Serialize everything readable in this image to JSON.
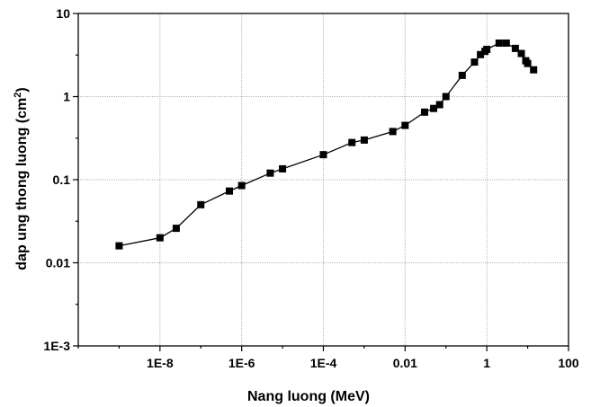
{
  "chart_data": {
    "type": "line",
    "xlabel": "Nang luong (MeV)",
    "ylabel_main": "dap ung thong luong (cm",
    "ylabel_sup": "2",
    "ylabel_close": ")",
    "x_scale": "log",
    "y_scale": "log",
    "xlim": [
      1e-10,
      100
    ],
    "ylim": [
      0.001,
      10
    ],
    "x_ticks": [
      {
        "value": 1e-08,
        "label": "1E-8"
      },
      {
        "value": 1e-06,
        "label": "1E-6"
      },
      {
        "value": 0.0001,
        "label": "1E-4"
      },
      {
        "value": 0.01,
        "label": "0.01"
      },
      {
        "value": 1,
        "label": "1"
      },
      {
        "value": 100,
        "label": "100"
      }
    ],
    "y_ticks": [
      {
        "value": 0.001,
        "label": "1E-3"
      },
      {
        "value": 0.01,
        "label": "0.01"
      },
      {
        "value": 0.1,
        "label": "0.1"
      },
      {
        "value": 1,
        "label": "1"
      },
      {
        "value": 10,
        "label": "10"
      }
    ],
    "grid": true,
    "marker": "square",
    "series": [
      {
        "color": "#000000",
        "x": [
          1e-09,
          1e-08,
          2.5e-08,
          1e-07,
          5e-07,
          1e-06,
          5e-06,
          1e-05,
          0.0001,
          0.0005,
          0.001,
          0.005,
          0.01,
          0.03,
          0.05,
          0.07,
          0.1,
          0.25,
          0.5,
          0.7,
          0.9,
          1.0,
          2.0,
          3.0,
          5.0,
          7.0,
          9.0,
          10.0,
          14.0
        ],
        "y": [
          0.016,
          0.02,
          0.026,
          0.05,
          0.073,
          0.085,
          0.12,
          0.135,
          0.2,
          0.28,
          0.3,
          0.38,
          0.45,
          0.65,
          0.72,
          0.8,
          1.0,
          1.8,
          2.6,
          3.2,
          3.5,
          3.7,
          4.4,
          4.4,
          3.8,
          3.3,
          2.7,
          2.5,
          2.1
        ]
      }
    ]
  }
}
